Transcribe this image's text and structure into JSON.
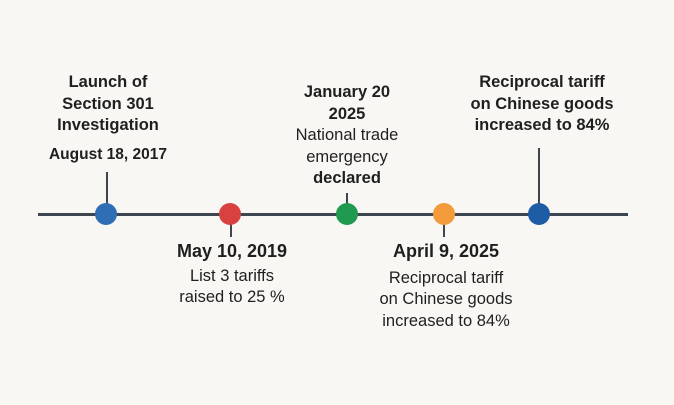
{
  "events": [
    {
      "date": "August 18, 2017",
      "lines": [
        "Launch of",
        "Section 301",
        "Investigation"
      ],
      "color": "#2f6db5",
      "position": "above"
    },
    {
      "date": "May 10, 2019",
      "lines": [
        "List 3 tariffs",
        "raised to 25 %"
      ],
      "color": "#d94141",
      "position": "below"
    },
    {
      "date_lines": [
        "January 20",
        "2025"
      ],
      "lines": [
        "National trade",
        "emergency",
        "declared"
      ],
      "color": "#1f9a4e",
      "position": "above"
    },
    {
      "date": "April 9, 2025",
      "lines": [
        "Reciprocal tariff",
        "on Chinese goods",
        "increased to 84%"
      ],
      "color": "#f39a3b",
      "position": "below"
    },
    {
      "lines": [
        "Reciprocal tariff",
        "on Chinese goods",
        "increased to 84%"
      ],
      "color": "#1f5ca6",
      "position": "above"
    }
  ]
}
